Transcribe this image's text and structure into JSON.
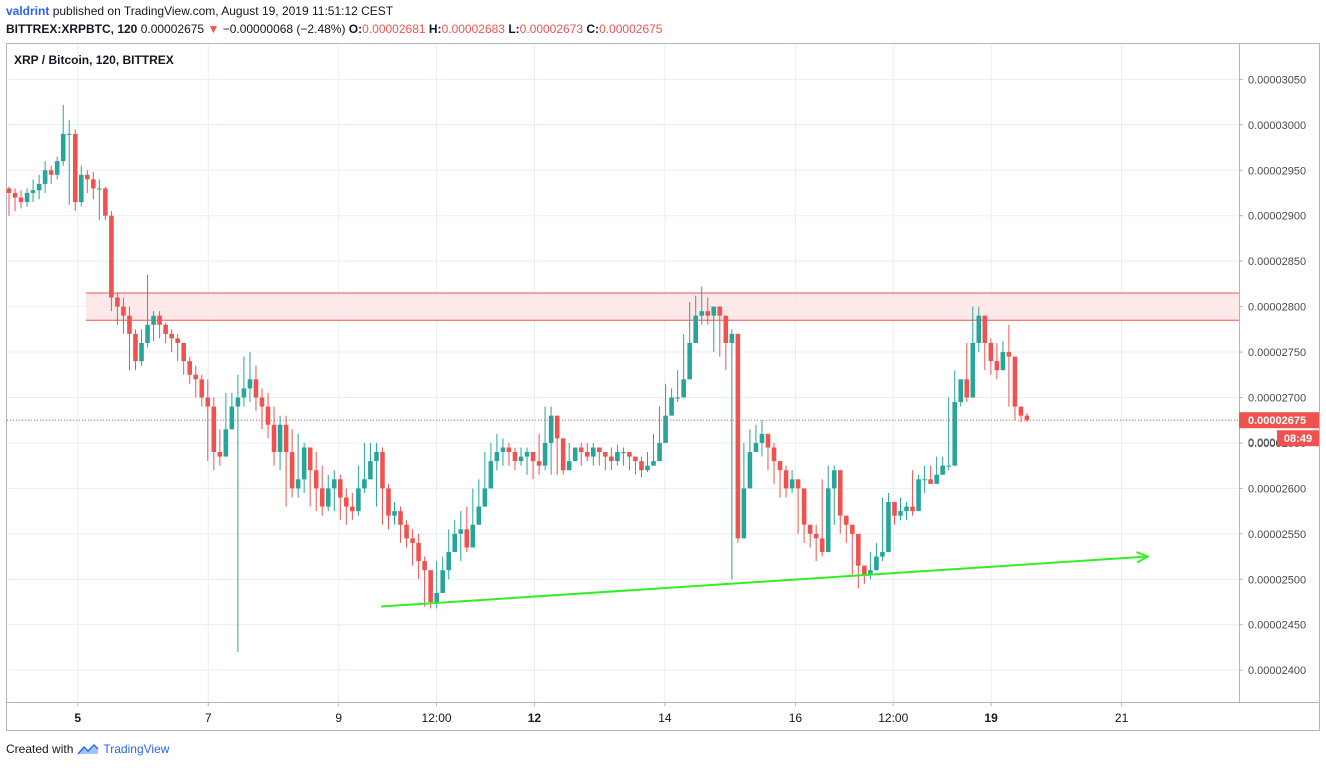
{
  "header": {
    "author": "valdrint",
    "published_text": "published on TradingView.com, August 19, 2019 11:51:12 CEST",
    "symbol_full": "BITTREX:XRPBTC, 120",
    "last_price": "0.00002675",
    "change_arrow": "▼",
    "change": "−0.00000068 (−2.48%)",
    "o_label": "O:",
    "o_value": "0.00002681",
    "h_label": "H:",
    "h_value": "0.00002683",
    "l_label": "L:",
    "l_value": "0.00002673",
    "c_label": "C:",
    "c_value": "0.00002675"
  },
  "legend": "XRP / Bitcoin, 120, BITTREX",
  "footer": {
    "created_with": "Created with",
    "brand": "TradingView"
  },
  "colors": {
    "up": "#26a69a",
    "down": "#ef5350",
    "grid": "#e8eef5",
    "trendline": "#33ee22",
    "zone_fill": "#fde4e4",
    "zone_border": "#ef5350"
  },
  "chart_data": {
    "type": "candlestick",
    "y_range": [
      2.365e-05,
      3.09e-05
    ],
    "y_ticks": [
      "0.00003050",
      "0.00003000",
      "0.00002950",
      "0.00002900",
      "0.00002850",
      "0.00002800",
      "0.00002750",
      "0.00002700",
      "0.00002650",
      "0.00002600",
      "0.00002550",
      "0.00002500",
      "0.00002450",
      "0.00002400"
    ],
    "y_tick_values": [
      3.05e-05,
      3e-05,
      2.95e-05,
      2.9e-05,
      2.85e-05,
      2.8e-05,
      2.75e-05,
      2.7e-05,
      2.65e-05,
      2.6e-05,
      2.55e-05,
      2.5e-05,
      2.45e-05,
      2.4e-05
    ],
    "x_ticks": [
      {
        "label": "5",
        "day": 5,
        "bold": true
      },
      {
        "label": "7",
        "day": 7
      },
      {
        "label": "9",
        "day": 9
      },
      {
        "label": "12:00",
        "day": 10.5
      },
      {
        "label": "12",
        "day": 12,
        "bold": true
      },
      {
        "label": "14",
        "day": 14
      },
      {
        "label": "16",
        "day": 16
      },
      {
        "label": "12:00",
        "day": 17.5
      },
      {
        "label": "19",
        "day": 19,
        "bold": true
      },
      {
        "label": "21",
        "day": 21
      }
    ],
    "x_day_range": [
      3.9,
      22.8
    ],
    "resistance_zone": {
      "low": 2.785e-05,
      "high": 2.815e-05
    },
    "current_price_line": 2.675e-05,
    "price_label": "0.00002675",
    "price_label_partial": "0.000",
    "countdown": "08:49",
    "trendline": {
      "from": {
        "day": 9.65,
        "price": 2.47e-05
      },
      "to": {
        "day": 21.4,
        "price": 2.525e-05
      }
    },
    "candles_close": [
      2.925e-05,
      2.92e-05,
      2.915e-05,
      2.925e-05,
      2.928e-05,
      2.935e-05,
      2.95e-05,
      2.945e-05,
      2.96e-05,
      2.99e-05,
      2.99e-05,
      2.915e-05,
      2.945e-05,
      2.94e-05,
      2.93e-05,
      2.93e-05,
      2.9e-05,
      2.81e-05,
      2.8e-05,
      2.79e-05,
      2.77e-05,
      2.74e-05,
      2.76e-05,
      2.78e-05,
      2.79e-05,
      2.78e-05,
      2.77e-05,
      2.765e-05,
      2.76e-05,
      2.74e-05,
      2.725e-05,
      2.72e-05,
      2.7e-05,
      2.69e-05,
      2.64e-05,
      2.635e-05,
      2.665e-05,
      2.69e-05,
      2.7e-05,
      2.71e-05,
      2.72e-05,
      2.7e-05,
      2.69e-05,
      2.67e-05,
      2.64e-05,
      2.67e-05,
      2.64e-05,
      2.6e-05,
      2.61e-05,
      2.645e-05,
      2.62e-05,
      2.6e-05,
      2.58e-05,
      2.6e-05,
      2.61e-05,
      2.59e-05,
      2.58e-05,
      2.575e-05,
      2.6e-05,
      2.61e-05,
      2.63e-05,
      2.64e-05,
      2.6e-05,
      2.57e-05,
      2.575e-05,
      2.56e-05,
      2.545e-05,
      2.54e-05,
      2.52e-05,
      2.51e-05,
      2.475e-05,
      2.485e-05,
      2.51e-05,
      2.53e-05,
      2.55e-05,
      2.555e-05,
      2.535e-05,
      2.56e-05,
      2.58e-05,
      2.6e-05,
      2.63e-05,
      2.64e-05,
      2.645e-05,
      2.64e-05,
      2.63e-05,
      2.635e-05,
      2.64e-05,
      2.63e-05,
      2.625e-05,
      2.65e-05,
      2.68e-05,
      2.655e-05,
      2.62e-05,
      2.63e-05,
      2.645e-05,
      2.64e-05,
      2.635e-05,
      2.645e-05,
      2.64e-05,
      2.635e-05,
      2.63e-05,
      2.64e-05,
      2.64e-05,
      2.635e-05,
      2.63e-05,
      2.62e-05,
      2.625e-05,
      2.63e-05,
      2.65e-05,
      2.68e-05,
      2.7e-05,
      2.7e-05,
      2.72e-05,
      2.76e-05,
      2.79e-05,
      2.795e-05,
      2.79e-05,
      2.8e-05,
      2.79e-05,
      2.76e-05,
      2.77e-05,
      2.545e-05,
      2.6e-05,
      2.64e-05,
      2.65e-05,
      2.66e-05,
      2.645e-05,
      2.63e-05,
      2.62e-05,
      2.6e-05,
      2.61e-05,
      2.6e-05,
      2.56e-05,
      2.55e-05,
      2.545e-05,
      2.53e-05,
      2.6e-05,
      2.62e-05,
      2.57e-05,
      2.56e-05,
      2.55e-05,
      2.515e-05,
      2.505e-05,
      2.51e-05,
      2.525e-05,
      2.53e-05,
      2.585e-05,
      2.57e-05,
      2.575e-05,
      2.58e-05,
      2.575e-05,
      2.61e-05,
      2.61e-05,
      2.605e-05,
      2.615e-05,
      2.625e-05,
      2.625e-05,
      2.695e-05,
      2.72e-05,
      2.7e-05,
      2.76e-05,
      2.79e-05,
      2.76e-05,
      2.74e-05,
      2.73e-05,
      2.75e-05,
      2.745e-05,
      2.69e-05,
      2.68e-05,
      2.675e-05
    ],
    "candles_hi_lo": [
      [
        2.932e-05,
        2.9e-05
      ],
      [
        2.93e-05,
        2.905e-05
      ],
      [
        2.928e-05,
        2.908e-05
      ],
      [
        2.93e-05,
        2.91e-05
      ],
      [
        2.94e-05,
        2.915e-05
      ],
      [
        2.945e-05,
        2.918e-05
      ],
      [
        2.96e-05,
        2.925e-05
      ],
      [
        2.955e-05,
        2.935e-05
      ],
      [
        2.965e-05,
        2.94e-05
      ],
      [
        3.022e-05,
        2.955e-05
      ],
      [
        3.005e-05,
        2.912e-05
      ],
      [
        2.995e-05,
        2.905e-05
      ],
      [
        2.955e-05,
        2.91e-05
      ],
      [
        2.95e-05,
        2.925e-05
      ],
      [
        2.948e-05,
        2.918e-05
      ],
      [
        2.94e-05,
        2.895e-05
      ],
      [
        2.932e-05,
        2.895e-05
      ],
      [
        2.905e-05,
        2.795e-05
      ],
      [
        2.815e-05,
        2.78e-05
      ],
      [
        2.81e-05,
        2.77e-05
      ],
      [
        2.8e-05,
        2.73e-05
      ],
      [
        2.775e-05,
        2.73e-05
      ],
      [
        2.775e-05,
        2.735e-05
      ],
      [
        2.835e-05,
        2.755e-05
      ],
      [
        2.795e-05,
        2.762e-05
      ],
      [
        2.795e-05,
        2.765e-05
      ],
      [
        2.782e-05,
        2.76e-05
      ],
      [
        2.775e-05,
        2.75e-05
      ],
      [
        2.77e-05,
        2.74e-05
      ],
      [
        2.76e-05,
        2.725e-05
      ],
      [
        2.745e-05,
        2.715e-05
      ],
      [
        2.735e-05,
        2.7e-05
      ],
      [
        2.725e-05,
        2.69e-05
      ],
      [
        2.72e-05,
        2.63e-05
      ],
      [
        2.7e-05,
        2.62e-05
      ],
      [
        2.665e-05,
        2.625e-05
      ],
      [
        2.705e-05,
        2.64e-05
      ],
      [
        2.705e-05,
        2.68e-05
      ],
      [
        2.725e-05,
        2.42e-05
      ],
      [
        2.745e-05,
        2.69e-05
      ],
      [
        2.75e-05,
        2.695e-05
      ],
      [
        2.735e-05,
        2.685e-05
      ],
      [
        2.71e-05,
        2.665e-05
      ],
      [
        2.705e-05,
        2.655e-05
      ],
      [
        2.69e-05,
        2.625e-05
      ],
      [
        2.68e-05,
        2.62e-05
      ],
      [
        2.68e-05,
        2.58e-05
      ],
      [
        2.665e-05,
        2.59e-05
      ],
      [
        2.66e-05,
        2.59e-05
      ],
      [
        2.65e-05,
        2.595e-05
      ],
      [
        2.645e-05,
        2.58e-05
      ],
      [
        2.64e-05,
        2.575e-05
      ],
      [
        2.625e-05,
        2.57e-05
      ],
      [
        2.615e-05,
        2.575e-05
      ],
      [
        2.62e-05,
        2.575e-05
      ],
      [
        2.615e-05,
        2.565e-05
      ],
      [
        2.6e-05,
        2.56e-05
      ],
      [
        2.595e-05,
        2.565e-05
      ],
      [
        2.625e-05,
        2.57e-05
      ],
      [
        2.65e-05,
        2.595e-05
      ],
      [
        2.65e-05,
        2.61e-05
      ],
      [
        2.65e-05,
        2.58e-05
      ],
      [
        2.645e-05,
        2.56e-05
      ],
      [
        2.605e-05,
        2.555e-05
      ],
      [
        2.585e-05,
        2.56e-05
      ],
      [
        2.58e-05,
        2.54e-05
      ],
      [
        2.565e-05,
        2.535e-05
      ],
      [
        2.555e-05,
        2.515e-05
      ],
      [
        2.55e-05,
        2.5e-05
      ],
      [
        2.525e-05,
        2.47e-05
      ],
      [
        2.505e-05,
        2.468e-05
      ],
      [
        2.52e-05,
        2.468e-05
      ],
      [
        2.525e-05,
        2.485e-05
      ],
      [
        2.555e-05,
        2.5e-05
      ],
      [
        2.565e-05,
        2.535e-05
      ],
      [
        2.575e-05,
        2.52e-05
      ],
      [
        2.58e-05,
        2.53e-05
      ],
      [
        2.6e-05,
        2.55e-05
      ],
      [
        2.61e-05,
        2.57e-05
      ],
      [
        2.64e-05,
        2.59e-05
      ],
      [
        2.65e-05,
        2.615e-05
      ],
      [
        2.66e-05,
        2.62e-05
      ],
      [
        2.655e-05,
        2.625e-05
      ],
      [
        2.65e-05,
        2.625e-05
      ],
      [
        2.645e-05,
        2.62e-05
      ],
      [
        2.645e-05,
        2.625e-05
      ],
      [
        2.645e-05,
        2.615e-05
      ],
      [
        2.64e-05,
        2.61e-05
      ],
      [
        2.66e-05,
        2.615e-05
      ],
      [
        2.69e-05,
        2.62e-05
      ],
      [
        2.69e-05,
        2.615e-05
      ],
      [
        2.665e-05,
        2.615e-05
      ],
      [
        2.65e-05,
        2.615e-05
      ],
      [
        2.65e-05,
        2.625e-05
      ],
      [
        2.645e-05,
        2.63e-05
      ],
      [
        2.65e-05,
        2.625e-05
      ],
      [
        2.65e-05,
        2.63e-05
      ],
      [
        2.65e-05,
        2.625e-05
      ],
      [
        2.645e-05,
        2.625e-05
      ],
      [
        2.64e-05,
        2.62e-05
      ],
      [
        2.645e-05,
        2.62e-05
      ],
      [
        2.648e-05,
        2.625e-05
      ],
      [
        2.645e-05,
        2.625e-05
      ],
      [
        2.64e-05,
        2.62e-05
      ],
      [
        2.635e-05,
        2.615e-05
      ],
      [
        2.635e-05,
        2.612e-05
      ],
      [
        2.64e-05,
        2.618e-05
      ],
      [
        2.66e-05,
        2.625e-05
      ],
      [
        2.69e-05,
        2.64e-05
      ],
      [
        2.715e-05,
        2.675e-05
      ],
      [
        2.71e-05,
        2.69e-05
      ],
      [
        2.73e-05,
        2.695e-05
      ],
      [
        2.77e-05,
        2.71e-05
      ],
      [
        2.805e-05,
        2.75e-05
      ],
      [
        2.812e-05,
        2.78e-05
      ],
      [
        2.822e-05,
        2.78e-05
      ],
      [
        2.81e-05,
        2.78e-05
      ],
      [
        2.8e-05,
        2.75e-05
      ],
      [
        2.79e-05,
        2.745e-05
      ],
      [
        2.78e-05,
        2.73e-05
      ],
      [
        2.775e-05,
        2.5e-05
      ],
      [
        2.62e-05,
        2.54e-05
      ],
      [
        2.65e-05,
        2.59e-05
      ],
      [
        2.665e-05,
        2.635e-05
      ],
      [
        2.67e-05,
        2.64e-05
      ],
      [
        2.675e-05,
        2.635e-05
      ],
      [
        2.66e-05,
        2.62e-05
      ],
      [
        2.65e-05,
        2.605e-05
      ],
      [
        2.63e-05,
        2.59e-05
      ],
      [
        2.625e-05,
        2.59e-05
      ],
      [
        2.62e-05,
        2.595e-05
      ],
      [
        2.61e-05,
        2.55e-05
      ],
      [
        2.58e-05,
        2.54e-05
      ],
      [
        2.56e-05,
        2.535e-05
      ],
      [
        2.56e-05,
        2.52e-05
      ],
      [
        2.61e-05,
        2.525e-05
      ],
      [
        2.625e-05,
        2.595e-05
      ],
      [
        2.625e-05,
        2.56e-05
      ],
      [
        2.595e-05,
        2.55e-05
      ],
      [
        2.57e-05,
        2.54e-05
      ],
      [
        2.56e-05,
        2.505e-05
      ],
      [
        2.53e-05,
        2.49e-05
      ],
      [
        2.515e-05,
        2.495e-05
      ],
      [
        2.53e-05,
        2.5e-05
      ],
      [
        2.54e-05,
        2.51e-05
      ],
      [
        2.59e-05,
        2.52e-05
      ],
      [
        2.595e-05,
        2.56e-05
      ],
      [
        2.585e-05,
        2.56e-05
      ],
      [
        2.59e-05,
        2.565e-05
      ],
      [
        2.585e-05,
        2.565e-05
      ],
      [
        2.62e-05,
        2.57e-05
      ],
      [
        2.615e-05,
        2.6e-05
      ],
      [
        2.625e-05,
        2.595e-05
      ],
      [
        2.625e-05,
        2.605e-05
      ],
      [
        2.635e-05,
        2.615e-05
      ],
      [
        2.635e-05,
        2.615e-05
      ],
      [
        2.7e-05,
        2.62e-05
      ],
      [
        2.73e-05,
        2.7e-05
      ],
      [
        2.72e-05,
        2.69e-05
      ],
      [
        2.76e-05,
        2.695e-05
      ],
      [
        2.8e-05,
        2.745e-05
      ],
      [
        2.8e-05,
        2.75e-05
      ],
      [
        2.785e-05,
        2.73e-05
      ],
      [
        2.765e-05,
        2.725e-05
      ],
      [
        2.76e-05,
        2.72e-05
      ],
      [
        2.762e-05,
        2.735e-05
      ],
      [
        2.78e-05,
        2.69e-05
      ],
      [
        2.7e-05,
        2.675e-05
      ],
      [
        2.683e-05,
        2.673e-05
      ],
      [
        2.683e-05,
        2.673e-05
      ]
    ]
  }
}
